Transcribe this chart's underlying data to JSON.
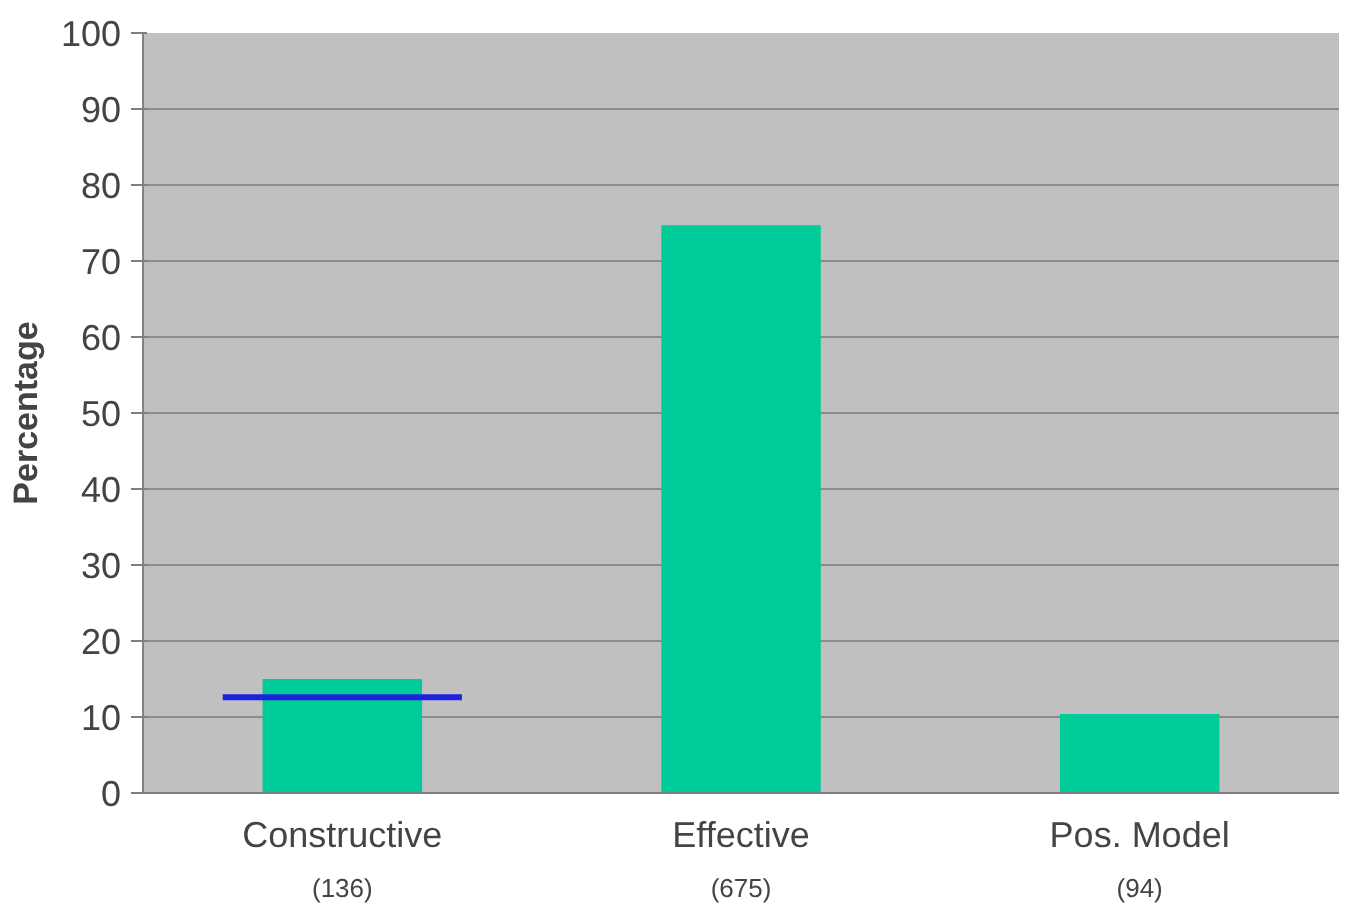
{
  "chart_data": {
    "type": "bar",
    "ylabel": "Percentage",
    "categories": [
      "Constructive",
      "Effective",
      "Pos. Model"
    ],
    "series": [
      {
        "color": "#00cc99",
        "values": [
          15,
          74.7,
          10.4
        ]
      }
    ],
    "ref_lines": [
      {
        "axis": "y",
        "value": 12.6,
        "color": "#2020e0"
      }
    ],
    "annotations": [
      "(136)",
      "(675)",
      "(94)"
    ],
    "ylim": [
      0,
      100
    ],
    "yticks": [
      0,
      10,
      20,
      30,
      40,
      50,
      60,
      70,
      80,
      90,
      100
    ],
    "grid": "y"
  }
}
